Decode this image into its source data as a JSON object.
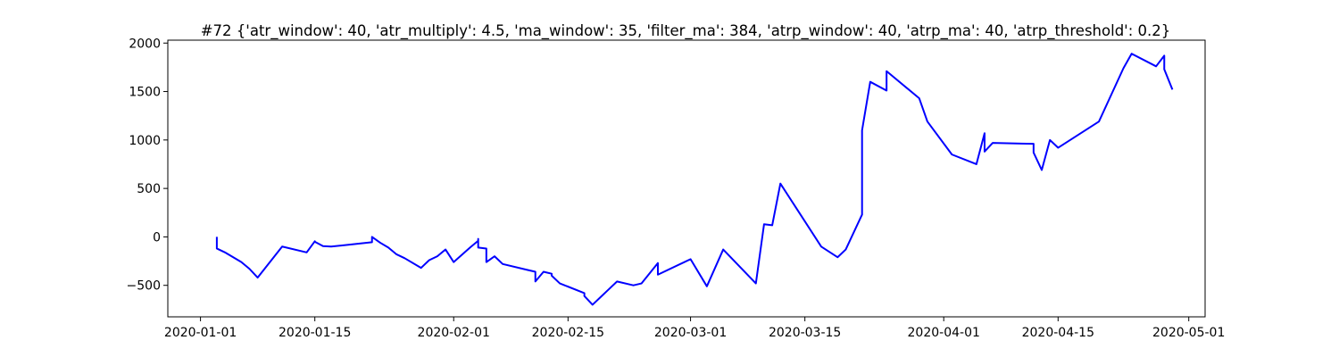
{
  "chart_data": {
    "type": "line",
    "title": "#72 {'atr_window': 40, 'atr_multiply': 4.5, 'ma_window': 35, 'filter_ma': 384, 'atrp_window': 40, 'atrp_ma': 40, 'atrp_threshold': 0.2}",
    "xlabel": "",
    "ylabel": "",
    "xlim": [
      "2019-12-28",
      "2020-05-03"
    ],
    "ylim": [
      -825,
      2030
    ],
    "grid": false,
    "x_ticks": [
      "2020-01-01",
      "2020-01-15",
      "2020-02-01",
      "2020-02-15",
      "2020-03-01",
      "2020-03-15",
      "2020-04-01",
      "2020-04-15",
      "2020-05-01"
    ],
    "y_ticks": [
      2000,
      1500,
      1000,
      500,
      0,
      -500
    ],
    "series": [
      {
        "color": "#0000ff",
        "x": [
          "2020-01-03",
          "2020-01-03",
          "2020-01-03",
          "2020-01-04",
          "2020-01-06",
          "2020-01-07",
          "2020-01-08",
          "2020-01-11",
          "2020-01-14",
          "2020-01-15",
          "2020-01-15",
          "2020-01-16",
          "2020-01-17",
          "2020-01-22",
          "2020-01-22",
          "2020-01-23",
          "2020-01-24",
          "2020-01-25",
          "2020-01-26",
          "2020-01-28",
          "2020-01-29",
          "2020-01-30",
          "2020-01-31",
          "2020-02-01",
          "2020-02-03",
          "2020-02-04",
          "2020-02-04",
          "2020-02-04",
          "2020-02-05",
          "2020-02-05",
          "2020-02-06",
          "2020-02-07",
          "2020-02-10",
          "2020-02-11",
          "2020-02-11",
          "2020-02-12",
          "2020-02-13",
          "2020-02-13",
          "2020-02-14",
          "2020-02-17",
          "2020-02-17",
          "2020-02-18",
          "2020-02-19",
          "2020-02-20",
          "2020-02-21",
          "2020-02-23",
          "2020-02-24",
          "2020-02-26",
          "2020-02-26",
          "2020-03-01",
          "2020-03-03",
          "2020-03-04",
          "2020-03-05",
          "2020-03-09",
          "2020-03-10",
          "2020-03-11",
          "2020-03-12",
          "2020-03-17",
          "2020-03-19",
          "2020-03-20",
          "2020-03-22",
          "2020-03-22",
          "2020-03-23",
          "2020-03-25",
          "2020-03-25",
          "2020-03-29",
          "2020-03-30",
          "2020-04-02",
          "2020-04-05",
          "2020-04-06",
          "2020-04-06",
          "2020-04-07",
          "2020-04-12",
          "2020-04-12",
          "2020-04-13",
          "2020-04-14",
          "2020-04-15",
          "2020-04-20",
          "2020-04-23",
          "2020-04-24",
          "2020-04-27",
          "2020-04-28",
          "2020-04-28",
          "2020-04-29"
        ],
        "y": [
          0,
          -5,
          -120,
          -160,
          -260,
          -330,
          -420,
          -100,
          -160,
          -45,
          -50,
          -95,
          -100,
          -55,
          0,
          -60,
          -110,
          -180,
          -220,
          -320,
          -240,
          -200,
          -130,
          -260,
          -110,
          -40,
          -20,
          -110,
          -120,
          -260,
          -200,
          -280,
          -340,
          -360,
          -460,
          -360,
          -380,
          -400,
          -480,
          -580,
          -610,
          -700,
          -620,
          -540,
          -460,
          -500,
          -480,
          -270,
          -390,
          -230,
          -510,
          -320,
          -130,
          -480,
          130,
          120,
          550,
          -100,
          -210,
          -130,
          230,
          1100,
          1600,
          1510,
          1710,
          1430,
          1190,
          850,
          750,
          1070,
          880,
          970,
          960,
          870,
          690,
          1000,
          920,
          1190,
          1740,
          1890,
          1760,
          1870,
          1730,
          1520
        ]
      }
    ]
  }
}
